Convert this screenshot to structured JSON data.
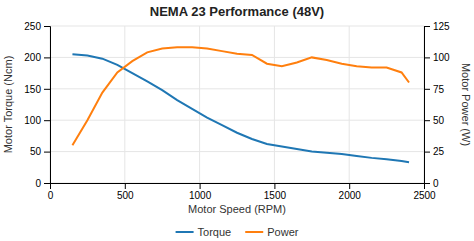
{
  "chart_data": {
    "type": "line",
    "title": "NEMA 23 Performance (48V)",
    "xlabel": "Motor Speed (RPM)",
    "ylabel": "Motor Torque (Ncm)",
    "y2label": "Motor Power (W)",
    "x": [
      150,
      250,
      350,
      450,
      550,
      650,
      750,
      850,
      950,
      1050,
      1150,
      1250,
      1350,
      1450,
      1550,
      1650,
      1750,
      1850,
      1950,
      2050,
      2150,
      2250,
      2350,
      2400
    ],
    "series": [
      {
        "name": "Torque",
        "values": [
          205,
          203,
          198,
          188,
          175,
          162,
          148,
          132,
          118,
          104,
          92,
          80,
          70,
          62,
          58,
          54,
          50,
          48,
          46,
          43,
          40,
          38,
          35,
          33
        ]
      },
      {
        "name": "Power",
        "axis": "y2",
        "values": [
          30,
          50,
          72,
          88,
          97,
          104,
          107,
          108,
          108,
          107,
          105,
          103,
          102,
          95,
          93,
          96,
          100,
          98,
          95,
          93,
          92,
          92,
          88,
          80
        ]
      }
    ],
    "xlim": [
      0,
      2500
    ],
    "xticks": [
      0,
      500,
      1000,
      1500,
      2000,
      2500
    ],
    "ylim": [
      0,
      250
    ],
    "yticks": [
      0,
      50,
      100,
      150,
      200,
      250
    ],
    "y2lim": [
      0,
      125
    ],
    "y2ticks": [
      0,
      25,
      50,
      75,
      100,
      125
    ],
    "grid": true,
    "legend": "bottom"
  }
}
